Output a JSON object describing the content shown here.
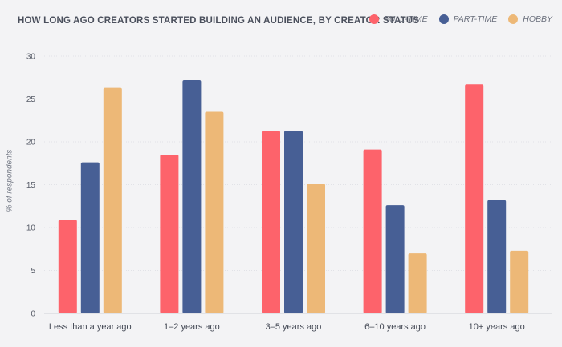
{
  "chart_data": {
    "type": "bar",
    "title": "HOW LONG AGO CREATORS STARTED BUILDING AN AUDIENCE, BY CREATOR STATUS",
    "xlabel": "",
    "ylabel": "% of respondents",
    "ylim": [
      0,
      30
    ],
    "yticks": [
      0,
      5,
      10,
      15,
      20,
      25,
      30
    ],
    "grid": true,
    "legend_position": "top-right",
    "categories": [
      "Less than a year ago",
      "1–2 years ago",
      "3–5 years ago",
      "6–10 years ago",
      "10+ years ago"
    ],
    "series": [
      {
        "name": "FULL-TIME",
        "color": "#fd636b",
        "values": [
          10.9,
          18.5,
          21.3,
          19.1,
          26.7
        ]
      },
      {
        "name": "PART-TIME",
        "color": "#475f95",
        "values": [
          17.6,
          27.2,
          21.3,
          12.6,
          13.2
        ]
      },
      {
        "name": "HOBBY",
        "color": "#edb877",
        "values": [
          26.3,
          23.5,
          15.1,
          7.0,
          7.3
        ]
      }
    ]
  }
}
